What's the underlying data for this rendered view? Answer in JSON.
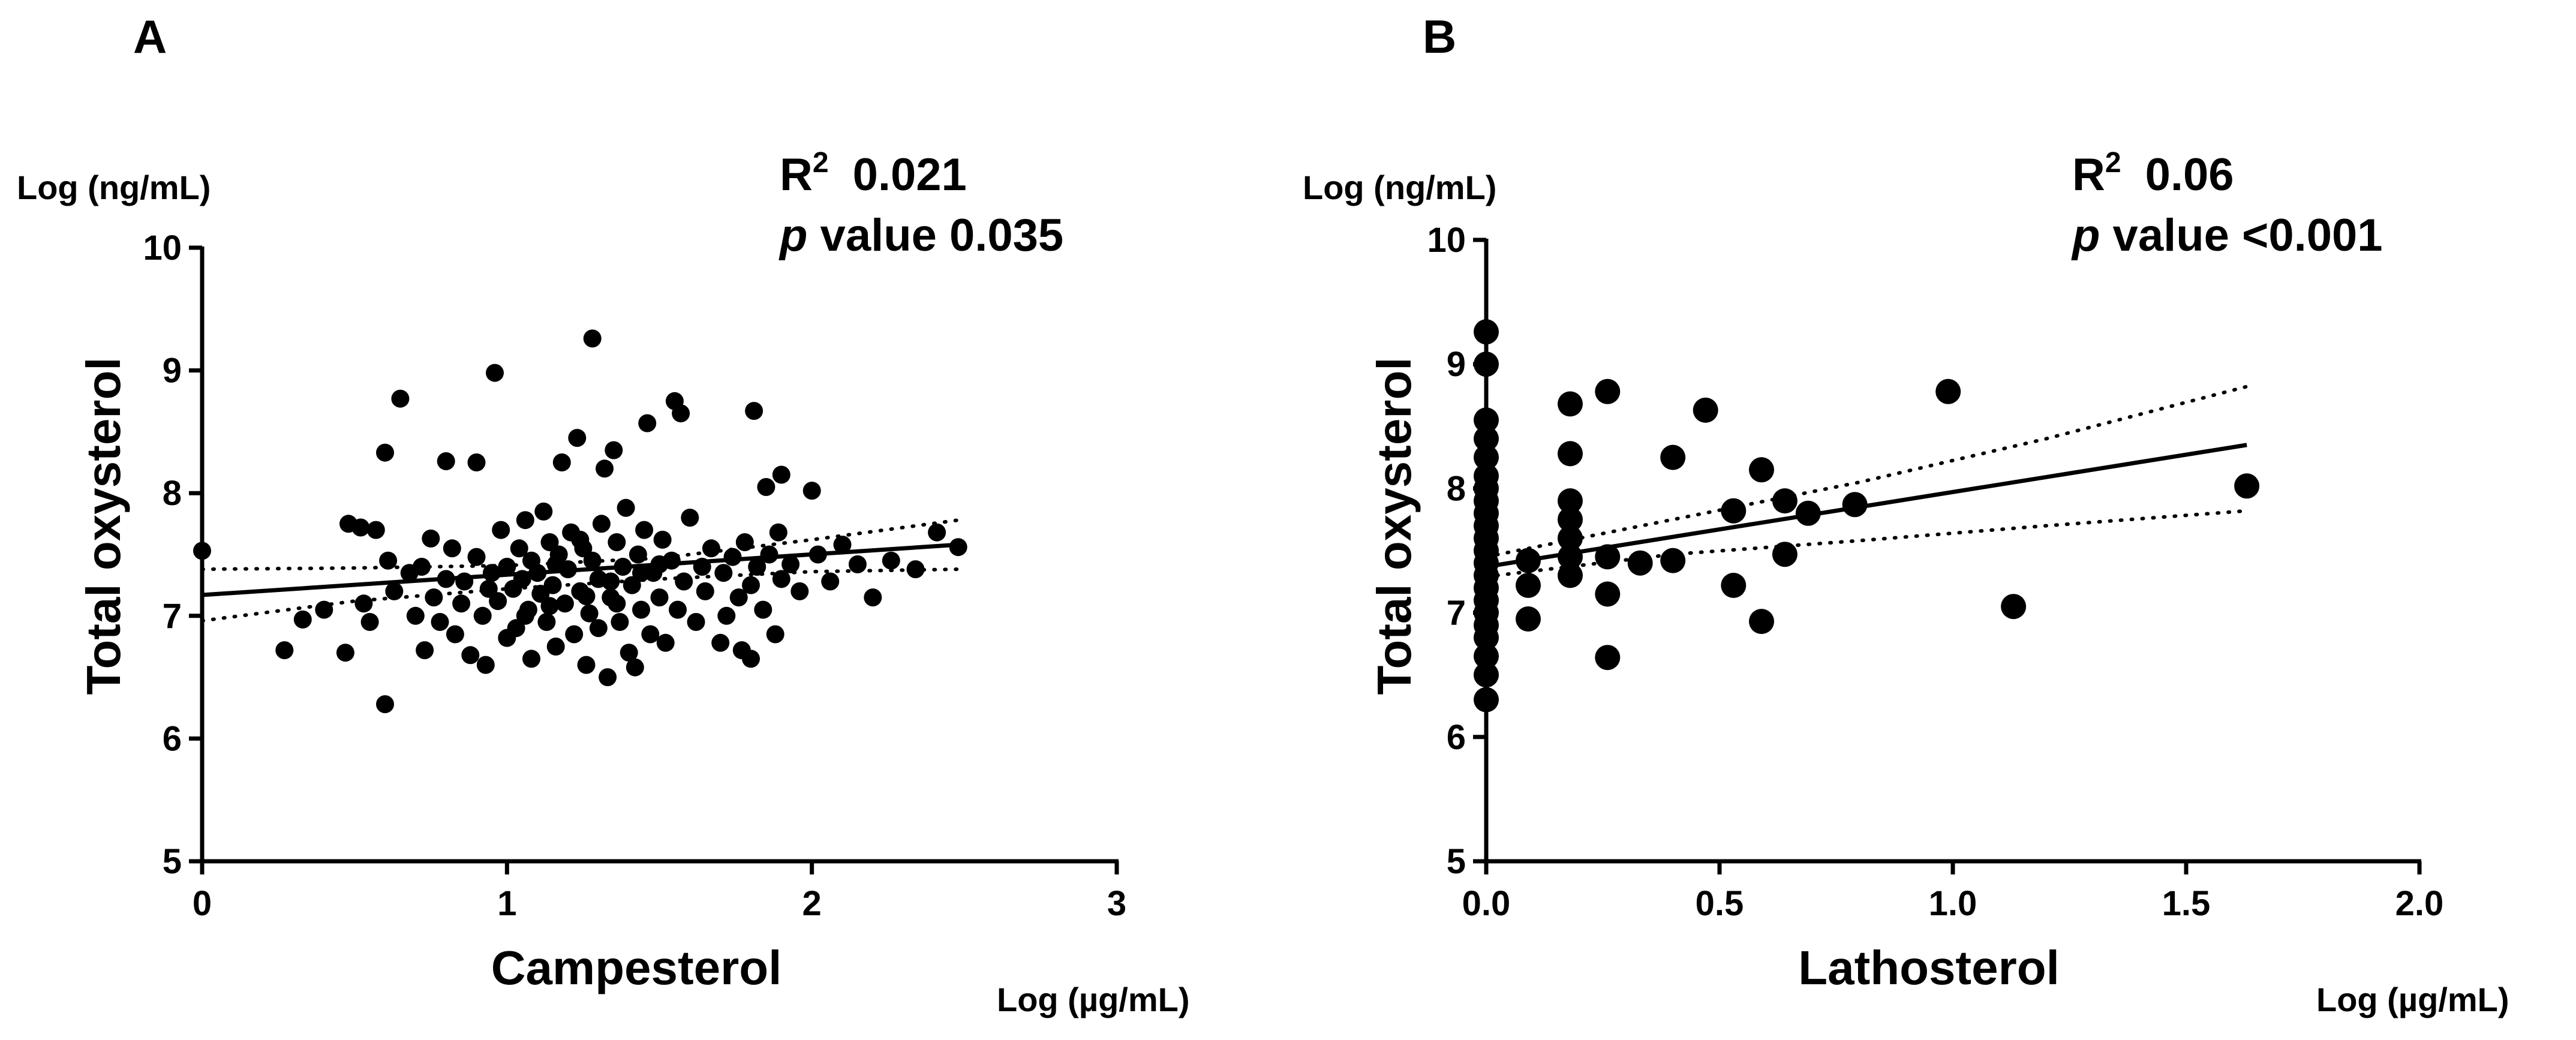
{
  "chart_data": [
    {
      "type": "scatter",
      "panel_label": "A",
      "title": "",
      "xlabel": "Campesterol",
      "x_unit": "Log (µg/mL)",
      "ylabel": "Total oxysterol",
      "y_unit": "Log (ng/mL)",
      "stats": {
        "r2_label": "R",
        "r2_sup": "2",
        "r2_value": "0.021",
        "p_italic": "p",
        "p_text": " value 0.035"
      },
      "xlim": [
        0,
        3
      ],
      "ylim": [
        5,
        10
      ],
      "xticks": [
        0,
        1,
        2,
        3
      ],
      "xtick_labels": [
        "0",
        "1",
        "2",
        "3"
      ],
      "yticks": [
        5,
        6,
        7,
        8,
        9,
        10
      ],
      "ytick_labels": [
        "5",
        "6",
        "7",
        "8",
        "9",
        "10"
      ],
      "regression": {
        "x": [
          0,
          2.48
        ],
        "y": [
          7.17,
          7.58
        ]
      },
      "ci_upper": {
        "x": [
          0,
          0.5,
          1.0,
          1.5,
          2.0,
          2.48
        ],
        "y": [
          7.38,
          7.39,
          7.41,
          7.47,
          7.62,
          7.78
        ]
      },
      "ci_lower": {
        "x": [
          0,
          0.5,
          1.0,
          1.5,
          2.0,
          2.48
        ],
        "y": [
          6.96,
          7.12,
          7.22,
          7.3,
          7.36,
          7.38
        ]
      },
      "points": [
        [
          0.0,
          7.53
        ],
        [
          0.27,
          6.72
        ],
        [
          0.33,
          6.97
        ],
        [
          0.4,
          7.05
        ],
        [
          0.47,
          6.7
        ],
        [
          0.48,
          7.75
        ],
        [
          0.52,
          7.72
        ],
        [
          0.53,
          7.1
        ],
        [
          0.55,
          6.95
        ],
        [
          0.57,
          7.7
        ],
        [
          0.6,
          6.28
        ],
        [
          0.6,
          8.33
        ],
        [
          0.61,
          7.45
        ],
        [
          0.63,
          7.2
        ],
        [
          0.65,
          8.77
        ],
        [
          0.68,
          7.35
        ],
        [
          0.7,
          7.0
        ],
        [
          0.72,
          7.4
        ],
        [
          0.73,
          6.72
        ],
        [
          0.75,
          7.63
        ],
        [
          0.76,
          7.15
        ],
        [
          0.78,
          6.95
        ],
        [
          0.8,
          8.26
        ],
        [
          0.8,
          7.3
        ],
        [
          0.82,
          7.55
        ],
        [
          0.83,
          6.85
        ],
        [
          0.85,
          7.1
        ],
        [
          0.86,
          7.28
        ],
        [
          0.88,
          6.68
        ],
        [
          0.9,
          7.48
        ],
        [
          0.9,
          8.25
        ],
        [
          0.92,
          7.0
        ],
        [
          0.93,
          6.6
        ],
        [
          0.95,
          7.35
        ],
        [
          0.96,
          8.98
        ],
        [
          0.97,
          7.12
        ],
        [
          0.98,
          7.7
        ],
        [
          1.0,
          6.82
        ],
        [
          1.0,
          7.4
        ],
        [
          1.02,
          7.22
        ],
        [
          1.03,
          6.9
        ],
        [
          1.04,
          7.55
        ],
        [
          1.05,
          7.3
        ],
        [
          1.06,
          7.78
        ],
        [
          1.07,
          7.05
        ],
        [
          1.08,
          6.65
        ],
        [
          1.08,
          7.45
        ],
        [
          1.1,
          7.35
        ],
        [
          1.11,
          7.18
        ],
        [
          1.12,
          7.85
        ],
        [
          1.13,
          6.95
        ],
        [
          1.14,
          7.6
        ],
        [
          1.15,
          7.25
        ],
        [
          1.16,
          6.75
        ],
        [
          1.17,
          7.5
        ],
        [
          1.18,
          8.25
        ],
        [
          1.19,
          7.1
        ],
        [
          1.2,
          7.38
        ],
        [
          1.21,
          7.68
        ],
        [
          1.22,
          6.85
        ],
        [
          1.23,
          8.45
        ],
        [
          1.24,
          7.2
        ],
        [
          1.25,
          7.55
        ],
        [
          1.26,
          6.6
        ],
        [
          1.27,
          7.02
        ],
        [
          1.28,
          9.26
        ],
        [
          1.28,
          7.45
        ],
        [
          1.3,
          7.3
        ],
        [
          1.3,
          6.9
        ],
        [
          1.31,
          7.75
        ],
        [
          1.32,
          8.2
        ],
        [
          1.33,
          6.5
        ],
        [
          1.34,
          7.15
        ],
        [
          1.35,
          8.35
        ],
        [
          1.36,
          7.6
        ],
        [
          1.37,
          6.95
        ],
        [
          1.38,
          7.4
        ],
        [
          1.39,
          7.88
        ],
        [
          1.4,
          6.7
        ],
        [
          1.41,
          7.25
        ],
        [
          1.42,
          6.58
        ],
        [
          1.43,
          7.5
        ],
        [
          1.44,
          7.05
        ],
        [
          1.45,
          7.7
        ],
        [
          1.46,
          8.57
        ],
        [
          1.47,
          6.85
        ],
        [
          1.48,
          7.35
        ],
        [
          1.5,
          7.15
        ],
        [
          1.51,
          7.62
        ],
        [
          1.52,
          6.78
        ],
        [
          1.54,
          7.45
        ],
        [
          1.55,
          8.75
        ],
        [
          1.56,
          7.05
        ],
        [
          1.57,
          8.65
        ],
        [
          1.58,
          7.28
        ],
        [
          1.6,
          7.8
        ],
        [
          1.62,
          6.95
        ],
        [
          1.64,
          7.4
        ],
        [
          1.65,
          7.2
        ],
        [
          1.67,
          7.55
        ],
        [
          1.7,
          6.78
        ],
        [
          1.71,
          7.35
        ],
        [
          1.72,
          7.0
        ],
        [
          1.74,
          7.48
        ],
        [
          1.76,
          7.15
        ],
        [
          1.77,
          6.72
        ],
        [
          1.78,
          7.6
        ],
        [
          1.8,
          6.65
        ],
        [
          1.8,
          7.25
        ],
        [
          1.81,
          8.67
        ],
        [
          1.82,
          7.4
        ],
        [
          1.84,
          7.05
        ],
        [
          1.85,
          8.05
        ],
        [
          1.86,
          7.5
        ],
        [
          1.88,
          6.85
        ],
        [
          1.89,
          7.68
        ],
        [
          1.9,
          7.3
        ],
        [
          1.9,
          8.15
        ],
        [
          1.93,
          7.42
        ],
        [
          1.96,
          7.2
        ],
        [
          2.0,
          8.02
        ],
        [
          2.02,
          7.5
        ],
        [
          2.06,
          7.28
        ],
        [
          2.1,
          7.58
        ],
        [
          2.15,
          7.42
        ],
        [
          2.2,
          7.15
        ],
        [
          2.26,
          7.45
        ],
        [
          2.34,
          7.38
        ],
        [
          2.41,
          7.68
        ],
        [
          2.48,
          7.56
        ],
        [
          1.06,
          7.0
        ],
        [
          1.16,
          7.42
        ],
        [
          1.26,
          7.16
        ],
        [
          1.34,
          7.28
        ],
        [
          1.44,
          7.35
        ],
        [
          0.94,
          7.22
        ],
        [
          1.14,
          7.08
        ],
        [
          1.24,
          7.62
        ],
        [
          1.36,
          7.1
        ],
        [
          1.5,
          7.42
        ]
      ]
    },
    {
      "type": "scatter",
      "panel_label": "B",
      "title": "",
      "xlabel": "Lathosterol",
      "x_unit": "Log (µg/mL)",
      "ylabel": "Total oxysterol",
      "y_unit": "Log (ng/mL)",
      "stats": {
        "r2_label": "R",
        "r2_sup": "2",
        "r2_value": "0.06",
        "p_italic": "p",
        "p_text": " value <0.001"
      },
      "xlim": [
        0,
        2.0
      ],
      "ylim": [
        5,
        10
      ],
      "xticks": [
        0,
        0.5,
        1.0,
        1.5,
        2.0
      ],
      "xtick_labels": [
        "0.0",
        "0.5",
        "1.0",
        "1.5",
        "2.0"
      ],
      "yticks": [
        5,
        6,
        7,
        8,
        9,
        10
      ],
      "ytick_labels": [
        "5",
        "6",
        "7",
        "8",
        "9",
        "10"
      ],
      "regression": {
        "x": [
          0,
          1.63
        ],
        "y": [
          7.37,
          8.35
        ]
      },
      "ci_upper": {
        "x": [
          0,
          0.4,
          0.8,
          1.2,
          1.63
        ],
        "y": [
          7.45,
          7.75,
          8.05,
          8.4,
          8.82
        ]
      },
      "ci_lower": {
        "x": [
          0,
          0.4,
          0.8,
          1.2,
          1.63
        ],
        "y": [
          7.29,
          7.47,
          7.58,
          7.7,
          7.82
        ]
      },
      "points": [
        [
          0.0,
          9.26
        ],
        [
          0.0,
          9.0
        ],
        [
          0.0,
          8.55
        ],
        [
          0.0,
          8.4
        ],
        [
          0.0,
          8.25
        ],
        [
          0.0,
          8.1
        ],
        [
          0.0,
          8.0
        ],
        [
          0.0,
          7.9
        ],
        [
          0.0,
          7.8
        ],
        [
          0.0,
          7.7
        ],
        [
          0.0,
          7.6
        ],
        [
          0.0,
          7.5
        ],
        [
          0.0,
          7.4
        ],
        [
          0.0,
          7.3
        ],
        [
          0.0,
          7.2
        ],
        [
          0.0,
          7.1
        ],
        [
          0.0,
          7.0
        ],
        [
          0.0,
          6.9
        ],
        [
          0.0,
          6.8
        ],
        [
          0.0,
          6.65
        ],
        [
          0.0,
          6.5
        ],
        [
          0.0,
          6.3
        ],
        [
          0.09,
          7.42
        ],
        [
          0.09,
          7.22
        ],
        [
          0.09,
          6.95
        ],
        [
          0.18,
          8.68
        ],
        [
          0.18,
          8.28
        ],
        [
          0.18,
          7.9
        ],
        [
          0.18,
          7.75
        ],
        [
          0.18,
          7.6
        ],
        [
          0.18,
          7.45
        ],
        [
          0.18,
          7.3
        ],
        [
          0.26,
          8.78
        ],
        [
          0.26,
          7.45
        ],
        [
          0.26,
          7.15
        ],
        [
          0.26,
          6.64
        ],
        [
          0.33,
          7.4
        ],
        [
          0.4,
          8.25
        ],
        [
          0.4,
          7.42
        ],
        [
          0.47,
          8.63
        ],
        [
          0.53,
          7.82
        ],
        [
          0.53,
          7.22
        ],
        [
          0.59,
          8.15
        ],
        [
          0.59,
          6.93
        ],
        [
          0.64,
          7.9
        ],
        [
          0.64,
          7.47
        ],
        [
          0.69,
          7.8
        ],
        [
          0.79,
          7.87
        ],
        [
          0.99,
          8.78
        ],
        [
          1.13,
          7.05
        ],
        [
          1.63,
          8.02
        ]
      ]
    }
  ]
}
